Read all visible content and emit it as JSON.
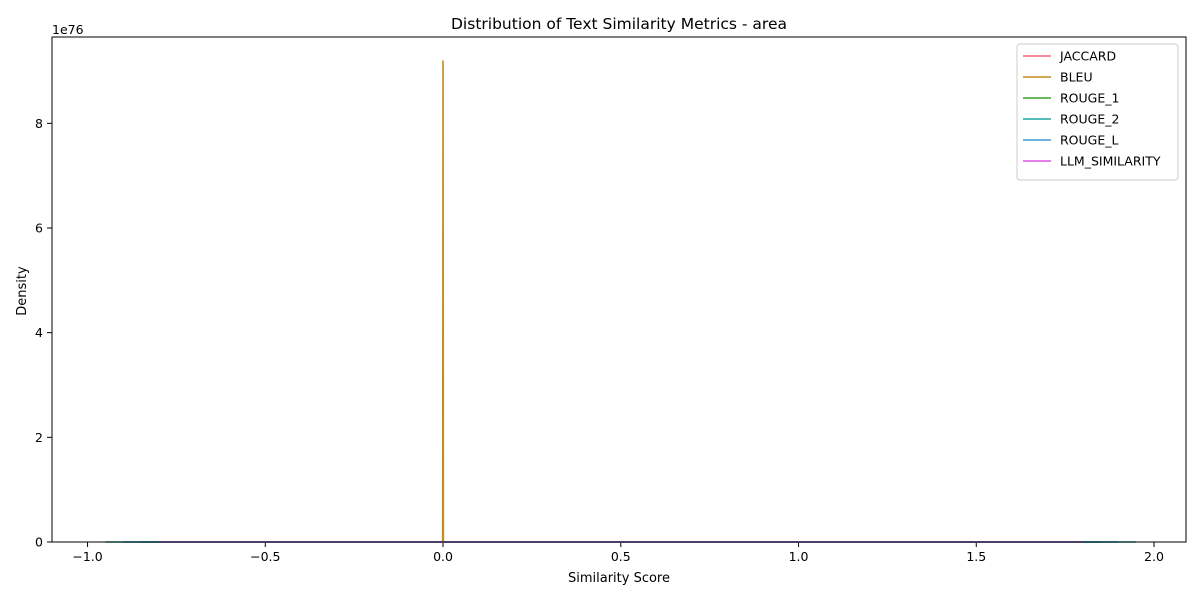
{
  "chart_data": {
    "type": "line",
    "title": "Distribution of Text Similarity Metrics - area",
    "xlabel": "Similarity Score",
    "ylabel": "Density",
    "y_offset_text": "1e76",
    "xlim": [
      -1.1,
      2.09
    ],
    "ylim": [
      0,
      9.65
    ],
    "x_ticks": [
      -1.0,
      -0.5,
      0.0,
      0.5,
      1.0,
      1.5,
      2.0
    ],
    "x_tick_labels": [
      "−1.0",
      "−0.5",
      "0.0",
      "0.5",
      "1.0",
      "1.5",
      "2.0"
    ],
    "y_ticks": [
      0,
      2,
      4,
      6,
      8
    ],
    "y_tick_labels": [
      "0",
      "2",
      "4",
      "6",
      "8"
    ],
    "grid": false,
    "legend_position": "top-right",
    "series": [
      {
        "name": "JACCARD",
        "color": "#f0607a",
        "x": [
          -0.8,
          1.8
        ],
        "y": [
          0,
          0
        ]
      },
      {
        "name": "BLEU",
        "color": "#c38c1e",
        "x": [
          -0.001,
          0.0,
          0.001
        ],
        "y": [
          0,
          9.2,
          0
        ]
      },
      {
        "name": "ROUGE_1",
        "color": "#3ca02c",
        "x": [
          -0.85,
          1.85
        ],
        "y": [
          0,
          0
        ]
      },
      {
        "name": "ROUGE_2",
        "color": "#1fa8a3",
        "x": [
          -0.95,
          1.95
        ],
        "y": [
          0,
          0
        ]
      },
      {
        "name": "ROUGE_L",
        "color": "#3c9ad8",
        "x": [
          -0.9,
          1.9
        ],
        "y": [
          0,
          0
        ]
      },
      {
        "name": "LLM_SIMILARITY",
        "color": "#e055e8",
        "x": [
          -0.8,
          1.8
        ],
        "y": [
          0,
          0
        ]
      }
    ]
  }
}
